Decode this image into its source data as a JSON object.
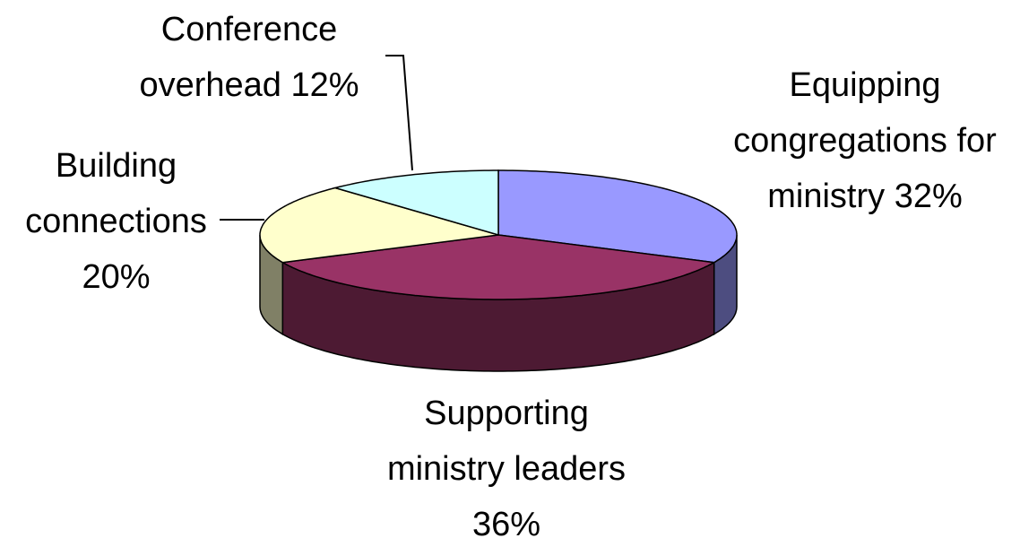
{
  "chart_data": {
    "type": "pie3d",
    "categories": [
      "Equipping congregations for ministry",
      "Supporting ministry leaders",
      "Building connections",
      "Conference overhead"
    ],
    "values": [
      32,
      36,
      20,
      12
    ],
    "value_labels": [
      "32%",
      "36%",
      "20%",
      "12%"
    ],
    "colors": [
      "#9999ff",
      "#993366",
      "#ffffcc",
      "#ccffff"
    ]
  }
}
